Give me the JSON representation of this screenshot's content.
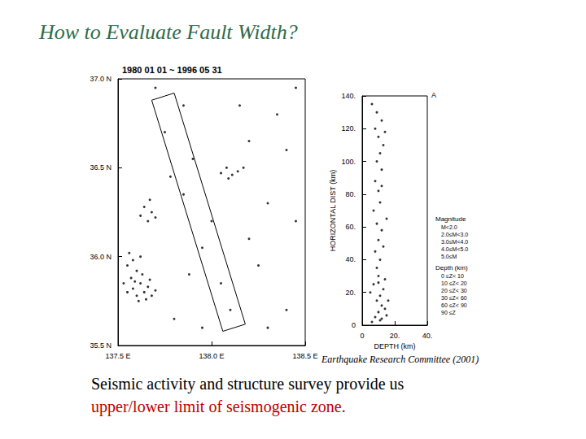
{
  "slide": {
    "title": "How to Evaluate Fault Width?",
    "caption": "Earthquake Research Committee (2001)",
    "text": "Seismic activity and structure survey provide us",
    "highlight": "upper/lower limit of seismogenic zone."
  },
  "legend_text": {
    "magnitude_title": "Magnitude",
    "magnitude": [
      "M<2.0",
      "2.0≤M<3.0",
      "3.0≤M<4.0",
      "4.0≤M<5.0",
      "5.0≤M"
    ],
    "depth_title": "Depth (km)",
    "depth": [
      "0 ≤Z< 10",
      "10 ≤Z< 20",
      "20 ≤Z< 30",
      "30 ≤Z< 60",
      "60 ≤Z< 90",
      "90 ≤Z"
    ]
  },
  "chart_data": [
    {
      "type": "scatter",
      "title": "1980 01 01 ~ 1996 05 31",
      "marker": "circle",
      "color": "#000000",
      "grid": false,
      "xlim": [
        137.5,
        138.5
      ],
      "xticks": [
        {
          "value": 137.5,
          "label": "137.5 E"
        },
        {
          "value": 138.0,
          "label": "138.0 E"
        },
        {
          "value": 138.5,
          "label": "138.5 E"
        }
      ],
      "ylim": [
        35.5,
        37.0
      ],
      "yticks": [
        {
          "value": 35.5,
          "label": "35.5 N"
        },
        {
          "value": 36.0,
          "label": "36.0 N"
        },
        {
          "value": 36.5,
          "label": "36.5 N"
        },
        {
          "value": 37.0,
          "label": "37.0 N"
        }
      ],
      "x": [
        137.55,
        137.58,
        137.6,
        137.62,
        137.64,
        137.66,
        137.57,
        137.6,
        137.63,
        137.55,
        137.58,
        137.68,
        137.7,
        137.61,
        137.65,
        137.53,
        137.59,
        137.67,
        137.56,
        137.62,
        137.66,
        137.68,
        137.64,
        137.7,
        137.67,
        137.62,
        138.05,
        138.08,
        138.11,
        138.14,
        138.09,
        138.17,
        137.9,
        137.85,
        137.75,
        138.35,
        138.4,
        138.3,
        138.2,
        138.25,
        138.1,
        137.95,
        137.8,
        138.4,
        138.45,
        137.95,
        137.85,
        138.0,
        138.15,
        137.7,
        138.05,
        138.3,
        137.88,
        138.2,
        137.78,
        138.45
      ],
      "y": [
        35.8,
        35.82,
        35.78,
        35.85,
        35.8,
        35.83,
        35.88,
        35.92,
        35.9,
        35.95,
        35.98,
        35.78,
        35.81,
        35.75,
        35.76,
        35.85,
        35.86,
        35.87,
        36.02,
        36.0,
        36.2,
        36.25,
        36.28,
        36.22,
        36.32,
        36.23,
        36.47,
        36.5,
        36.46,
        36.48,
        36.44,
        36.5,
        36.55,
        36.85,
        36.7,
        36.8,
        36.6,
        36.3,
        36.1,
        35.95,
        35.7,
        35.6,
        35.65,
        35.7,
        36.2,
        36.05,
        36.35,
        36.2,
        36.85,
        36.95,
        35.85,
        35.6,
        35.9,
        36.65,
        36.45,
        36.95
      ],
      "section_box": {
        "x": [
          137.68,
          137.8,
          138.18,
          138.06,
          137.68
        ],
        "y": [
          36.88,
          36.92,
          35.62,
          35.58,
          36.88
        ]
      }
    },
    {
      "type": "scatter",
      "marker": "circle",
      "color": "#000000",
      "grid": false,
      "xlabel": "DEPTH (km)",
      "ylabel": "HORIZONTAL DIST (km)",
      "annotation": "A",
      "xlim": [
        0,
        40
      ],
      "xticks": [
        0,
        {
          "value": 20,
          "label": "20."
        },
        {
          "value": 40,
          "label": "40."
        }
      ],
      "ylim": [
        0,
        140
      ],
      "yticks": [
        0,
        {
          "value": 20,
          "label": "20."
        },
        {
          "value": 40,
          "label": "40."
        },
        {
          "value": 60,
          "label": "60."
        },
        {
          "value": 80,
          "label": "80."
        },
        {
          "value": 100,
          "label": "100."
        },
        {
          "value": 120,
          "label": "120."
        },
        {
          "value": 140,
          "label": "140."
        }
      ],
      "x": [
        8,
        10,
        12,
        14,
        9,
        11,
        13,
        7,
        10,
        12,
        15,
        6,
        9,
        11,
        8,
        10,
        12,
        9,
        7,
        11,
        10,
        8,
        12,
        9,
        11,
        13,
        10,
        8,
        12,
        9,
        6,
        14,
        16,
        5,
        13,
        15,
        12,
        14,
        10,
        11
      ],
      "y": [
        5,
        8,
        4,
        10,
        15,
        18,
        22,
        25,
        30,
        12,
        6,
        2,
        35,
        40,
        45,
        52,
        58,
        62,
        70,
        75,
        82,
        88,
        95,
        100,
        105,
        110,
        115,
        120,
        125,
        130,
        135,
        28,
        15,
        20,
        48,
        65,
        85,
        118,
        26,
        3
      ]
    }
  ]
}
